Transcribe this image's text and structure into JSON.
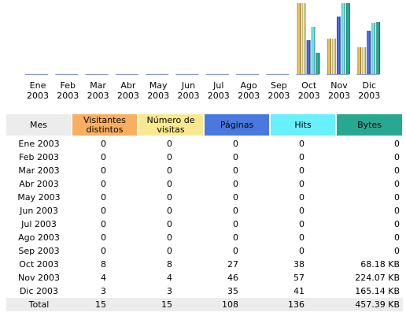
{
  "chart_data": {
    "type": "bar",
    "categories": [
      [
        "Ene",
        "2003"
      ],
      [
        "Feb",
        "2003"
      ],
      [
        "Mar",
        "2003"
      ],
      [
        "Abr",
        "2003"
      ],
      [
        "May",
        "2003"
      ],
      [
        "Jun",
        "2003"
      ],
      [
        "Jul",
        "2003"
      ],
      [
        "Ago",
        "2003"
      ],
      [
        "Sep",
        "2003"
      ],
      [
        "Oct",
        "2003"
      ],
      [
        "Nov",
        "2003"
      ],
      [
        "Dic",
        "2003"
      ]
    ],
    "series": [
      {
        "name": "Visitantes distintos",
        "color": "#f0b050",
        "values": [
          0,
          0,
          0,
          0,
          0,
          0,
          0,
          0,
          0,
          8,
          4,
          3
        ]
      },
      {
        "name": "Número de visitas",
        "color": "#f8d88a",
        "values": [
          0,
          0,
          0,
          0,
          0,
          0,
          0,
          0,
          0,
          8,
          4,
          3
        ]
      },
      {
        "name": "Páginas",
        "color": "#4060d0",
        "values": [
          0,
          0,
          0,
          0,
          0,
          0,
          0,
          0,
          0,
          27,
          46,
          35
        ]
      },
      {
        "name": "Hits",
        "color": "#60e8f8",
        "values": [
          0,
          0,
          0,
          0,
          0,
          0,
          0,
          0,
          0,
          38,
          57,
          41
        ]
      },
      {
        "name": "Bytes",
        "color": "#20a088",
        "values": [
          0,
          0,
          0,
          0,
          0,
          0,
          0,
          0,
          0,
          68.18,
          224.07,
          165.14
        ]
      }
    ]
  },
  "table": {
    "headers": [
      {
        "lines": [
          "Mes"
        ],
        "color": "#ececec"
      },
      {
        "lines": [
          "Visitantes",
          "distintos"
        ],
        "color": "#f8b060"
      },
      {
        "lines": [
          "Número de",
          "visitas"
        ],
        "color": "#f8e890"
      },
      {
        "lines": [
          "Páginas"
        ],
        "color": "#4878e0"
      },
      {
        "lines": [
          "Hits"
        ],
        "color": "#68f0ff"
      },
      {
        "lines": [
          "Bytes"
        ],
        "color": "#28a890"
      }
    ],
    "rows": [
      [
        "Ene 2003",
        "0",
        "0",
        "0",
        "0",
        "0"
      ],
      [
        "Feb 2003",
        "0",
        "0",
        "0",
        "0",
        "0"
      ],
      [
        "Mar 2003",
        "0",
        "0",
        "0",
        "0",
        "0"
      ],
      [
        "Abr 2003",
        "0",
        "0",
        "0",
        "0",
        "0"
      ],
      [
        "May 2003",
        "0",
        "0",
        "0",
        "0",
        "0"
      ],
      [
        "Jun 2003",
        "0",
        "0",
        "0",
        "0",
        "0"
      ],
      [
        "Jul 2003",
        "0",
        "0",
        "0",
        "0",
        "0"
      ],
      [
        "Ago 2003",
        "0",
        "0",
        "0",
        "0",
        "0"
      ],
      [
        "Sep 2003",
        "0",
        "0",
        "0",
        "0",
        "0"
      ],
      [
        "Oct 2003",
        "8",
        "8",
        "27",
        "38",
        "68.18 KB"
      ],
      [
        "Nov 2003",
        "4",
        "4",
        "46",
        "57",
        "224.07 KB"
      ],
      [
        "Dic 2003",
        "3",
        "3",
        "35",
        "41",
        "165.14 KB"
      ]
    ],
    "total": [
      "Total",
      "15",
      "15",
      "108",
      "136",
      "457.39 KB"
    ]
  }
}
